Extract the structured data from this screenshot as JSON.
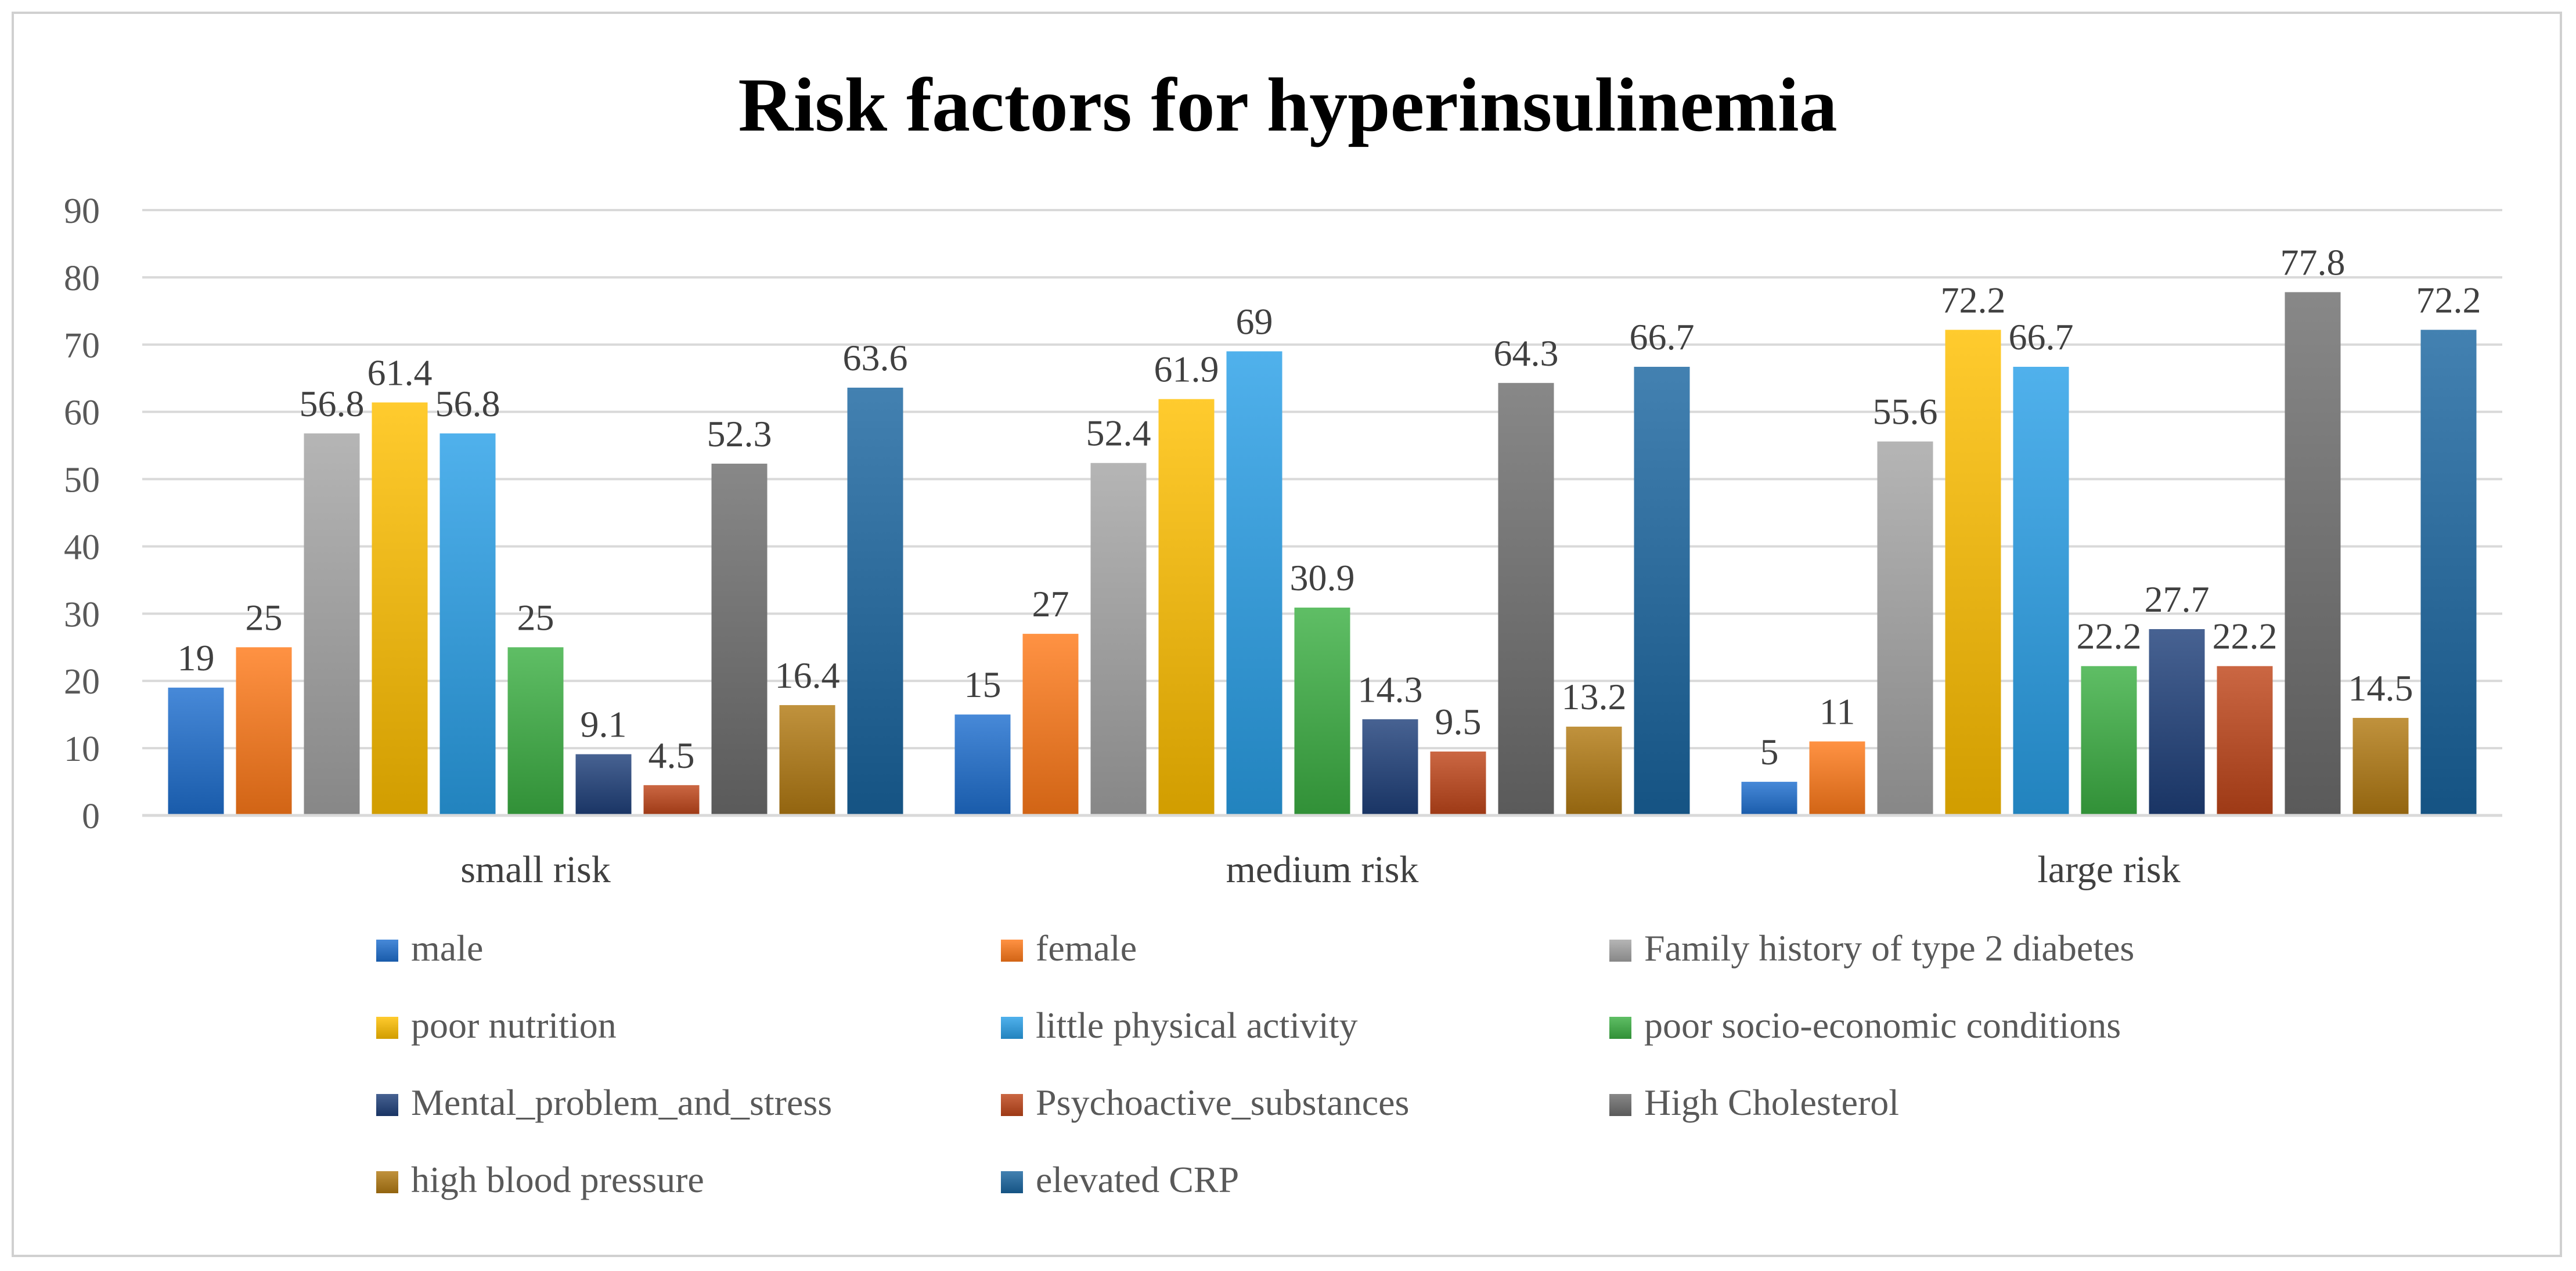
{
  "chart_data": {
    "type": "bar",
    "title": "Risk factors for hyperinsulinemia",
    "xlabel": "",
    "ylabel": "",
    "ylim": [
      0,
      90
    ],
    "yticks": [
      0,
      10,
      20,
      30,
      40,
      50,
      60,
      70,
      80,
      90
    ],
    "grid": true,
    "legend_position": "bottom",
    "categories": [
      "small risk",
      "medium risk",
      "large risk"
    ],
    "series": [
      {
        "name": "male",
        "color": "#1f6fcf",
        "values": [
          19,
          15,
          5
        ]
      },
      {
        "name": "female",
        "color": "#ff7a1a",
        "values": [
          25,
          27,
          11
        ]
      },
      {
        "name": "Family history of type 2 diabetes",
        "color": "#a5a5a5",
        "values": [
          56.8,
          52.4,
          55.6
        ]
      },
      {
        "name": "poor nutrition",
        "color": "#ffc000",
        "values": [
          61.4,
          61.9,
          72.2
        ]
      },
      {
        "name": "little physical activity",
        "color": "#2aa0e8",
        "values": [
          56.8,
          69,
          66.7
        ]
      },
      {
        "name": "poor socio-economic conditions",
        "color": "#3cb043",
        "values": [
          25,
          30.9,
          22.2
        ]
      },
      {
        "name": "Mental_problem_and_stress",
        "color": "#1f3f7a",
        "values": [
          9.1,
          14.3,
          27.7
        ]
      },
      {
        "name": "Psychoactive_substances",
        "color": "#c0461a",
        "values": [
          4.5,
          9.5,
          22.2
        ]
      },
      {
        "name": "High Cholesterol",
        "color": "#6e6e6e",
        "values": [
          52.3,
          64.3,
          77.8
        ]
      },
      {
        "name": "high blood pressure",
        "color": "#b27a12",
        "values": [
          16.4,
          13.2,
          14.5
        ]
      },
      {
        "name": "elevated CRP",
        "color": "#1a65a0",
        "values": [
          63.6,
          66.7,
          72.2
        ]
      }
    ]
  }
}
